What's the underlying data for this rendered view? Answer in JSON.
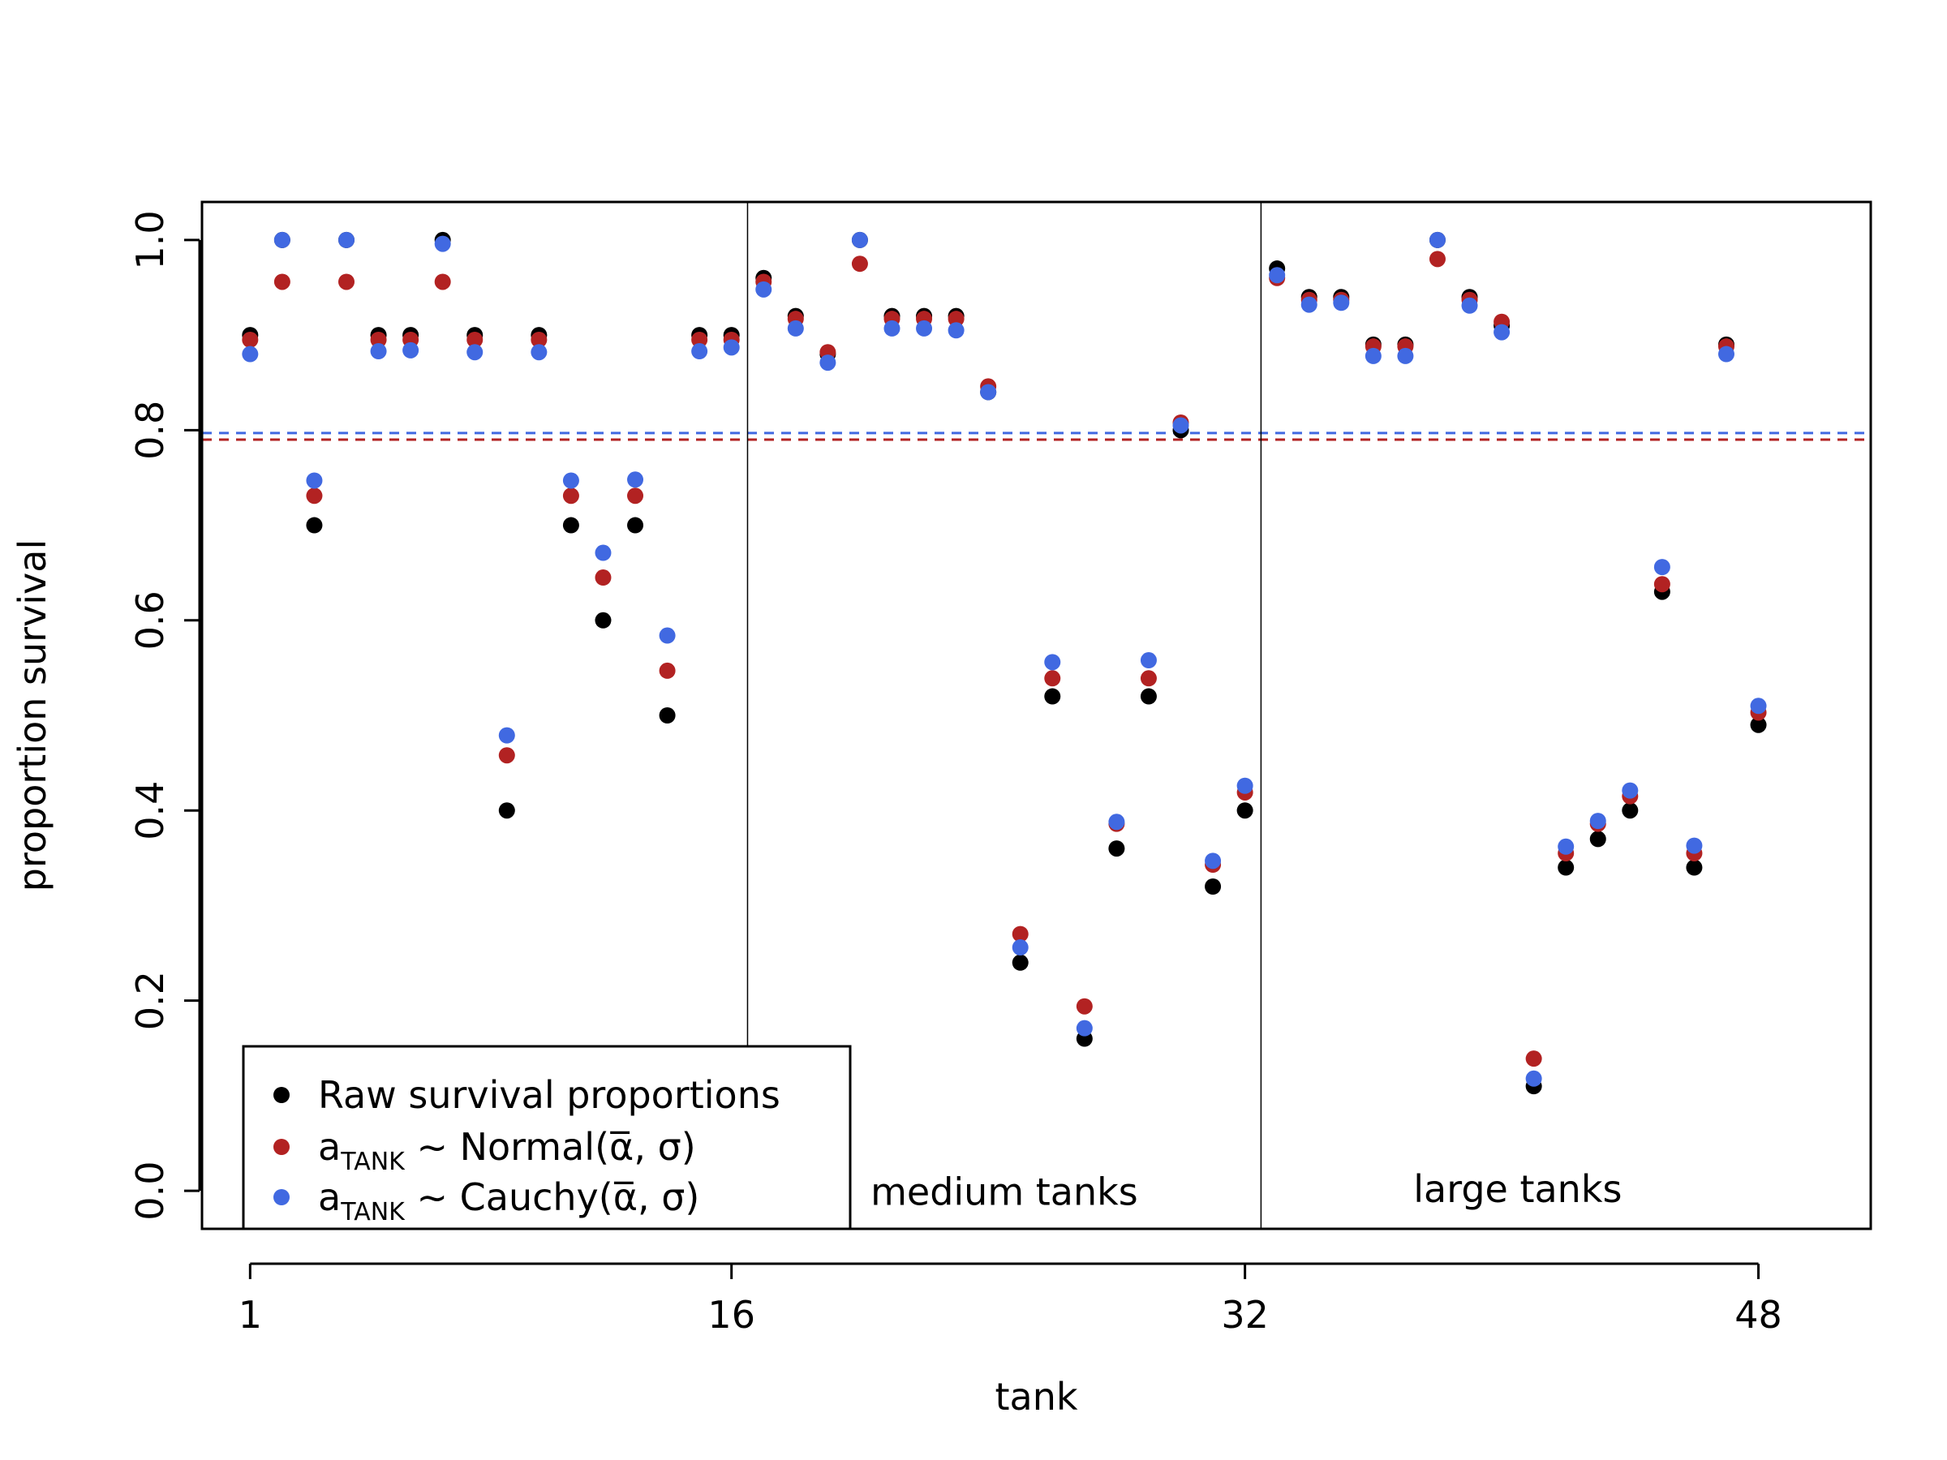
{
  "chart_data": {
    "type": "scatter",
    "title": "",
    "xlabel": "tank",
    "ylabel": "proportion survival",
    "xlim": [
      -0.5,
      51.5
    ],
    "ylim": [
      -0.04,
      1.04
    ],
    "x_ticks": [
      1,
      16,
      32,
      48
    ],
    "y_ticks": [
      0.0,
      0.2,
      0.4,
      0.6,
      0.8,
      1.0
    ],
    "y_tick_labels": [
      "0.0",
      "0.2",
      "0.4",
      "0.6",
      "0.8",
      "1.0"
    ],
    "x_tick_labels": [
      "1",
      "16",
      "32",
      "48"
    ],
    "grid": false,
    "legend_position": "bottom-left",
    "dividers": [
      16.5,
      32.5
    ],
    "region_labels": [
      {
        "text": "medium tanks",
        "x": 24.5,
        "y": -0.003
      },
      {
        "text": "large tanks",
        "x": 40.5,
        "y": 0.0
      }
    ],
    "reference_lines": [
      {
        "series": "Cauchy",
        "y": 0.797,
        "color": "#4169E1",
        "style": "dashed"
      },
      {
        "series": "Normal",
        "y": 0.79,
        "color": "#B22222",
        "style": "dashed"
      }
    ],
    "legend": {
      "raw": {
        "label": "Raw survival proportions"
      },
      "normal": {
        "prefix": "a",
        "sub": "TANK",
        "suffix": " ~ Normal(α̅, σ)"
      },
      "cauchy": {
        "prefix": "a",
        "sub": "TANK",
        "suffix": " ~ Cauchy(α̅, σ)"
      }
    },
    "series": [
      {
        "key": "raw",
        "color": "#000000",
        "values": [
          0.9,
          1.0,
          0.7,
          1.0,
          0.9,
          0.9,
          1.0,
          0.9,
          0.4,
          0.9,
          0.7,
          0.6,
          0.7,
          0.5,
          0.9,
          0.9,
          0.96,
          0.92,
          0.88,
          1.0,
          0.92,
          0.92,
          0.92,
          0.84,
          0.24,
          0.52,
          0.16,
          0.36,
          0.52,
          0.8,
          0.32,
          0.4,
          0.97,
          0.94,
          0.94,
          0.89,
          0.89,
          1.0,
          0.94,
          0.91,
          0.11,
          0.34,
          0.37,
          0.4,
          0.63,
          0.34,
          0.89,
          0.49
        ]
      },
      {
        "key": "normal",
        "color": "#B22222",
        "values": [
          0.895,
          0.956,
          0.731,
          0.956,
          0.895,
          0.895,
          0.956,
          0.895,
          0.458,
          0.895,
          0.731,
          0.645,
          0.731,
          0.547,
          0.895,
          0.895,
          0.956,
          0.917,
          0.882,
          0.975,
          0.917,
          0.917,
          0.917,
          0.846,
          0.27,
          0.539,
          0.194,
          0.386,
          0.539,
          0.808,
          0.343,
          0.419,
          0.96,
          0.937,
          0.937,
          0.888,
          0.888,
          0.98,
          0.937,
          0.914,
          0.139,
          0.355,
          0.386,
          0.415,
          0.638,
          0.355,
          0.888,
          0.503
        ]
      },
      {
        "key": "cauchy",
        "color": "#4169E1",
        "values": [
          0.88,
          1.0,
          0.747,
          1.0,
          0.883,
          0.884,
          0.996,
          0.882,
          0.479,
          0.882,
          0.747,
          0.671,
          0.748,
          0.584,
          0.883,
          0.887,
          0.948,
          0.907,
          0.871,
          1.0,
          0.907,
          0.907,
          0.905,
          0.84,
          0.256,
          0.556,
          0.171,
          0.388,
          0.558,
          0.805,
          0.347,
          0.426,
          0.963,
          0.932,
          0.934,
          0.878,
          0.878,
          1.0,
          0.931,
          0.903,
          0.118,
          0.362,
          0.389,
          0.421,
          0.656,
          0.363,
          0.88,
          0.51
        ]
      }
    ]
  }
}
